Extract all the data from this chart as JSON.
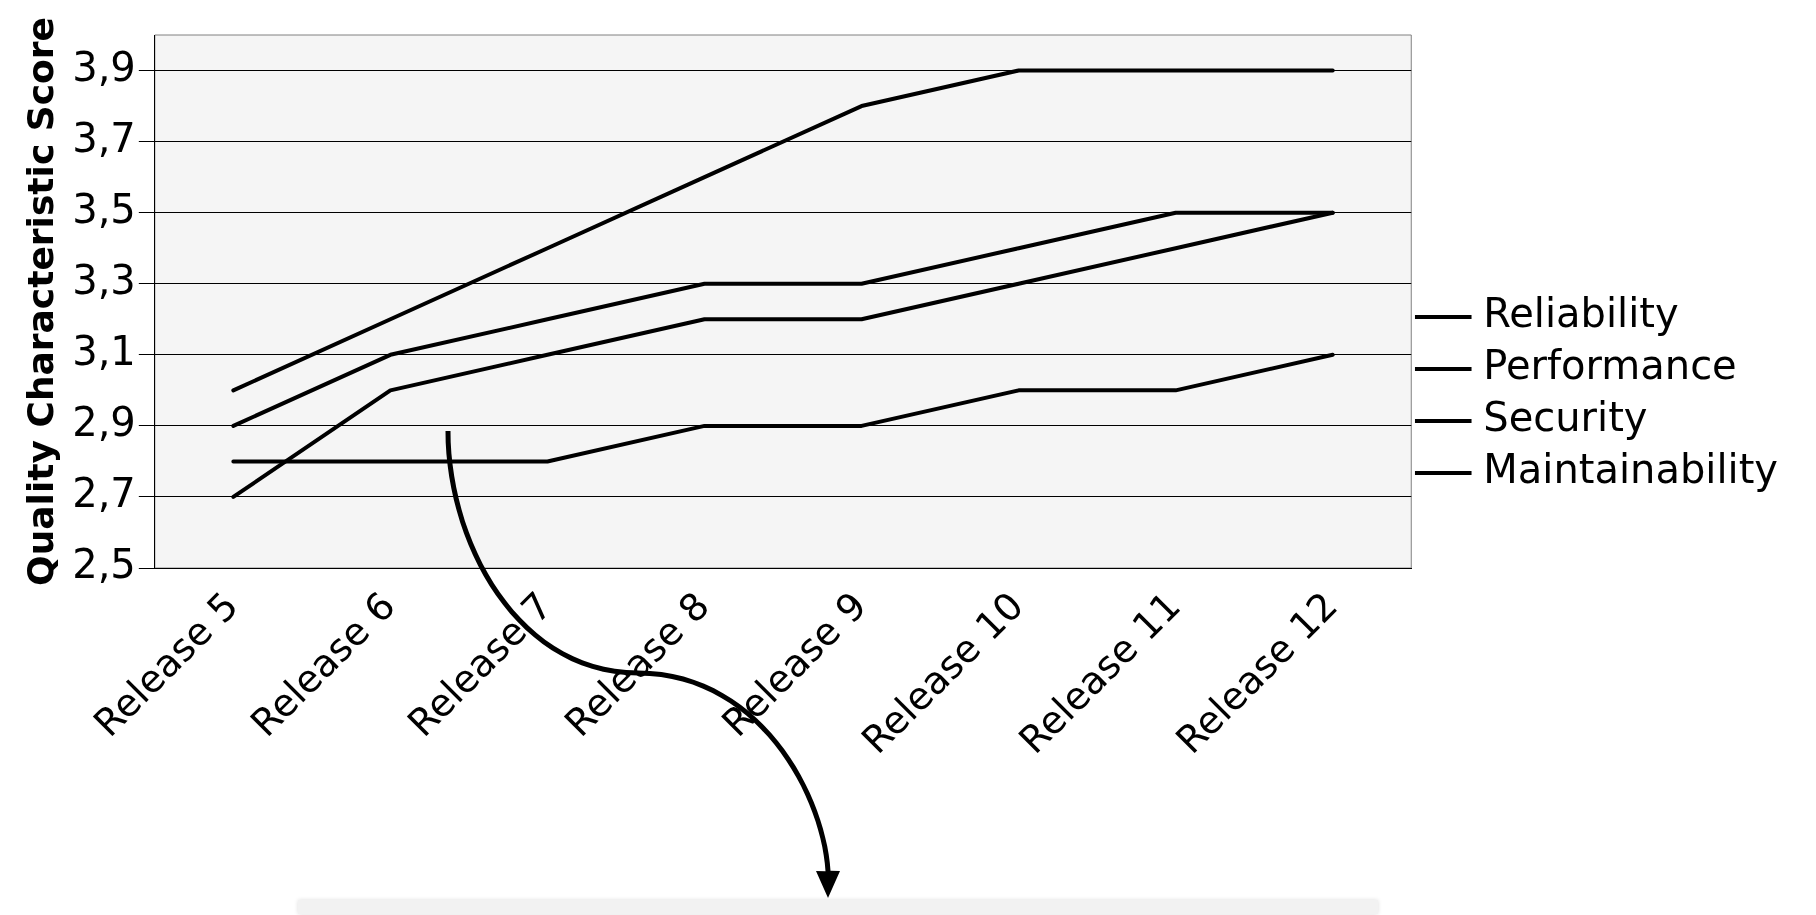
{
  "chart_data": {
    "type": "line",
    "ylabel": "Quality Characteristic Score",
    "categories": [
      "Release 5",
      "Release 6",
      "Release 7",
      "Release 8",
      "Release 9",
      "Release 10",
      "Release 11",
      "Release 12"
    ],
    "series": [
      {
        "name": "Reliability",
        "color": "#000000",
        "values": [
          3.0,
          3.2,
          3.4,
          3.6,
          3.8,
          3.9,
          3.9,
          3.9
        ]
      },
      {
        "name": "Performance",
        "color": "#000000",
        "values": [
          2.9,
          3.1,
          3.2,
          3.3,
          3.3,
          3.4,
          3.5,
          3.5
        ]
      },
      {
        "name": "Security",
        "color": "#000000",
        "values": [
          2.7,
          3.0,
          3.1,
          3.2,
          3.2,
          3.3,
          3.4,
          3.5
        ]
      },
      {
        "name": "Maintainability",
        "color": "#000000",
        "values": [
          2.8,
          2.8,
          2.8,
          2.9,
          2.9,
          3.0,
          3.0,
          3.1
        ]
      }
    ],
    "ylim": [
      2.5,
      4.0
    ],
    "yticks": [
      {
        "value": 2.5,
        "label": "2,5"
      },
      {
        "value": 2.7,
        "label": "2,7"
      },
      {
        "value": 2.9,
        "label": "2,9"
      },
      {
        "value": 3.1,
        "label": "3,1"
      },
      {
        "value": 3.3,
        "label": "3,3"
      },
      {
        "value": 3.5,
        "label": "3,5"
      },
      {
        "value": 3.7,
        "label": "3,7"
      },
      {
        "value": 3.9,
        "label": "3,9"
      }
    ],
    "grid": "y",
    "legend": "right",
    "marker": "none",
    "line_style": "solid"
  }
}
